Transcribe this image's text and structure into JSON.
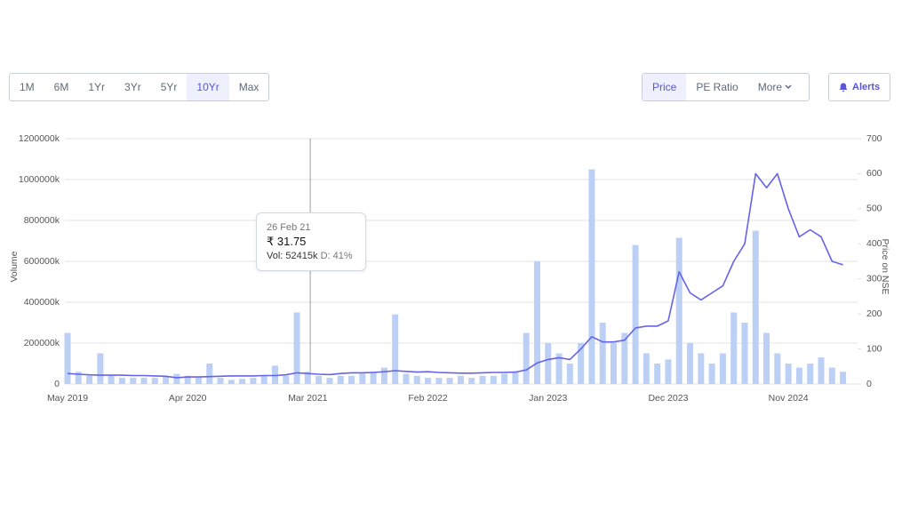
{
  "toolbar": {
    "ranges": [
      "1M",
      "6M",
      "1Yr",
      "3Yr",
      "5Yr",
      "10Yr",
      "Max"
    ],
    "active_range": 5,
    "views": [
      "Price",
      "PE Ratio",
      "More"
    ],
    "active_view": 0,
    "alerts": "Alerts"
  },
  "tooltip": {
    "date": "26 Feb 21",
    "price": "₹ 31.75",
    "volume": "Vol: 52415k",
    "delivery": "D: 41%"
  },
  "chart_data": {
    "type": "bar",
    "ylabel": "Volume",
    "y2label": "Price on NSE",
    "grid": true,
    "x": [
      "May 2019",
      null,
      null,
      null,
      null,
      null,
      null,
      null,
      null,
      null,
      null,
      "Apr 2020",
      null,
      null,
      null,
      null,
      null,
      null,
      null,
      null,
      null,
      null,
      "Mar 2021",
      null,
      null,
      null,
      null,
      null,
      null,
      null,
      null,
      null,
      null,
      "Feb 2022",
      null,
      null,
      null,
      null,
      null,
      null,
      null,
      null,
      null,
      null,
      "Jan 2023",
      null,
      null,
      null,
      null,
      null,
      null,
      null,
      null,
      null,
      null,
      "Dec 2023",
      null,
      null,
      null,
      null,
      null,
      null,
      null,
      null,
      null,
      null,
      "Nov 2024",
      null,
      null,
      null,
      null,
      null
    ],
    "ylim": [
      0,
      1200000
    ],
    "yticks": [
      {
        "value": 0,
        "label": "0"
      },
      {
        "value": 200000,
        "label": "200000k"
      },
      {
        "value": 400000,
        "label": "400000k"
      },
      {
        "value": 600000,
        "label": "600000k"
      },
      {
        "value": 800000,
        "label": "800000k"
      },
      {
        "value": 1000000,
        "label": "1000000k"
      },
      {
        "value": 1200000,
        "label": "1200000k"
      }
    ],
    "y2lim": [
      0,
      700
    ],
    "y2ticks": [
      0,
      100,
      200,
      300,
      400,
      500,
      600,
      700
    ],
    "series": [
      {
        "type": "bar",
        "color": "#bcd0f5",
        "values": [
          250000,
          60000,
          40000,
          150000,
          40000,
          30000,
          30000,
          30000,
          30000,
          40000,
          50000,
          40000,
          30000,
          100000,
          30000,
          20000,
          25000,
          30000,
          40000,
          90000,
          40000,
          350000,
          60000,
          40000,
          30000,
          40000,
          40000,
          50000,
          60000,
          80000,
          340000,
          50000,
          40000,
          30000,
          30000,
          30000,
          40000,
          30000,
          40000,
          40000,
          50000,
          60000,
          250000,
          600000,
          200000,
          150000,
          100000,
          200000,
          1050000,
          300000,
          200000,
          250000,
          680000,
          150000,
          100000,
          120000,
          715000,
          200000,
          150000,
          100000,
          150000,
          350000,
          300000,
          750000,
          250000,
          150000,
          100000,
          80000,
          100000,
          130000,
          80000,
          60000
        ]
      },
      {
        "type": "line",
        "axis": "y2",
        "color": "#6563e8",
        "values": [
          30,
          28,
          26,
          25,
          25,
          25,
          24,
          24,
          23,
          22,
          18,
          20,
          20,
          21,
          22,
          23,
          23,
          23,
          24,
          24,
          26,
          32,
          30,
          28,
          27,
          30,
          32,
          32,
          33,
          35,
          38,
          36,
          34,
          35,
          33,
          32,
          31,
          31,
          32,
          33,
          33,
          34,
          40,
          60,
          70,
          75,
          70,
          100,
          135,
          120,
          120,
          125,
          160,
          165,
          165,
          180,
          320,
          260,
          240,
          260,
          280,
          350,
          400,
          600,
          560,
          600,
          500,
          420,
          440,
          420,
          350,
          340
        ]
      }
    ]
  }
}
